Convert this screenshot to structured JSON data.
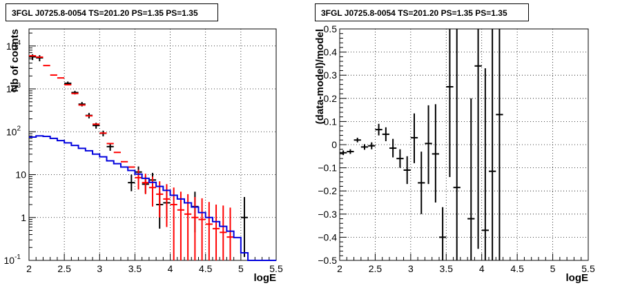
{
  "chart_data": [
    {
      "type": "scatter",
      "title": "3FGL J0725.8-0054 TS=201.20 PS=1.35 PS=1.35",
      "xlabel": "logE",
      "ylabel": "Nb of counts",
      "xlim": [
        2,
        5.5
      ],
      "ylim": [
        0.1,
        25000
      ],
      "yscale": "log",
      "grid": true,
      "xticks": [
        {
          "v": 2,
          "label": "2"
        },
        {
          "v": 2.5,
          "label": "2.5"
        },
        {
          "v": 3,
          "label": "3"
        },
        {
          "v": 3.5,
          "label": "3.5"
        },
        {
          "v": 4,
          "label": "4"
        },
        {
          "v": 4.5,
          "label": "4.5"
        },
        {
          "v": 5,
          "label": "5"
        },
        {
          "v": 5.5,
          "label": "5.5"
        }
      ],
      "yticks": [
        {
          "v": 0.1,
          "label": "10",
          "sup": "-1"
        },
        {
          "v": 1,
          "label": "1",
          "sup": ""
        },
        {
          "v": 10,
          "label": "10",
          "sup": ""
        },
        {
          "v": 100,
          "label": "10",
          "sup": "2"
        },
        {
          "v": 1000,
          "label": "10",
          "sup": "3"
        },
        {
          "v": 10000,
          "label": "10",
          "sup": "4"
        }
      ],
      "series": [
        {
          "color": "#000000",
          "points": [
            [
              2.05,
              5600,
              4700,
              6400
            ],
            [
              2.15,
              5300,
              4400,
              6100
            ],
            [
              2.55,
              1350,
              1220,
              1480
            ],
            [
              2.65,
              820,
              740,
              900
            ],
            [
              2.75,
              440,
              390,
              495
            ],
            [
              2.85,
              240,
              205,
              275
            ],
            [
              2.95,
              140,
              118,
              162
            ],
            [
              3.05,
              92,
              78,
              106
            ],
            [
              3.15,
              45,
              36,
              54
            ],
            [
              3.55,
              11.5,
              7.8,
              15.5
            ],
            [
              3.45,
              6.5,
              4.1,
              10
            ],
            [
              3.65,
              6.0,
              3.7,
              9
            ],
            [
              3.75,
              7.5,
              4.6,
              11
            ],
            [
              3.85,
              2.0,
              0.55,
              4
            ],
            [
              3.95,
              2.2,
              1.0,
              4.5
            ],
            [
              4.35,
              1.8,
              0.45,
              4
            ],
            [
              5.05,
              1.0,
              0.12,
              3
            ]
          ]
        },
        {
          "color": "#ff0000",
          "points": [
            [
              2.05,
              5900,
              5900,
              5900
            ],
            [
              2.15,
              5500,
              5500,
              5500
            ],
            [
              2.25,
              3500,
              3500,
              3500
            ],
            [
              2.35,
              2100,
              2100,
              2100
            ],
            [
              2.45,
              1800,
              1800,
              1800
            ],
            [
              2.55,
              1250,
              1250,
              1250
            ],
            [
              2.65,
              780,
              780,
              780
            ],
            [
              2.75,
              420,
              420,
              420
            ],
            [
              2.85,
              235,
              235,
              235
            ],
            [
              2.95,
              150,
              150,
              150
            ],
            [
              3.05,
              93,
              93,
              93
            ],
            [
              3.15,
              53,
              53,
              53
            ],
            [
              3.25,
              33,
              33,
              33
            ],
            [
              3.35,
              20,
              20,
              20
            ],
            [
              3.45,
              15,
              15,
              15
            ],
            [
              3.55,
              8.5,
              4.5,
              13
            ],
            [
              3.65,
              6.5,
              3.5,
              10.5
            ],
            [
              3.75,
              5.0,
              1.8,
              9
            ],
            [
              3.85,
              3.5,
              1.0,
              7
            ],
            [
              3.95,
              2.7,
              0.6,
              6
            ],
            [
              4.05,
              2.0,
              0.1,
              5
            ],
            [
              4.15,
              1.5,
              0.1,
              4
            ],
            [
              4.25,
              1.2,
              0.1,
              3.5
            ],
            [
              4.35,
              1.0,
              0.1,
              3
            ],
            [
              4.45,
              0.9,
              0.1,
              2.8
            ],
            [
              4.55,
              0.7,
              0.1,
              2.3
            ],
            [
              4.65,
              0.55,
              0.1,
              2.0
            ],
            [
              4.75,
              0.45,
              0.1,
              1.9
            ],
            [
              4.85,
              0.35,
              0.1,
              1.7
            ]
          ]
        },
        {
          "color": "#0000dd",
          "step": [
            [
              2.0,
              75
            ],
            [
              2.1,
              80
            ],
            [
              2.2,
              78
            ],
            [
              2.3,
              70
            ],
            [
              2.4,
              62
            ],
            [
              2.5,
              55
            ],
            [
              2.6,
              48
            ],
            [
              2.7,
              41
            ],
            [
              2.8,
              36
            ],
            [
              2.9,
              30
            ],
            [
              3.0,
              26
            ],
            [
              3.1,
              21
            ],
            [
              3.2,
              18
            ],
            [
              3.3,
              15
            ],
            [
              3.4,
              12.5
            ],
            [
              3.5,
              10.3
            ],
            [
              3.6,
              8.2
            ],
            [
              3.7,
              6.6
            ],
            [
              3.8,
              5.3
            ],
            [
              3.9,
              4.3
            ],
            [
              4.0,
              3.3
            ],
            [
              4.1,
              2.7
            ],
            [
              4.2,
              2.2
            ],
            [
              4.3,
              1.75
            ],
            [
              4.4,
              1.3
            ],
            [
              4.5,
              1.0
            ],
            [
              4.6,
              0.8
            ],
            [
              4.7,
              0.62
            ],
            [
              4.8,
              0.48
            ],
            [
              4.9,
              0.34
            ],
            [
              5.0,
              0.15
            ],
            [
              5.1,
              0.1
            ],
            [
              5.5,
              0.1
            ]
          ]
        }
      ]
    },
    {
      "type": "scatter",
      "title": "3FGL J0725.8-0054 TS=201.20 PS=1.35 PS=1.35",
      "xlabel": "logE",
      "ylabel": "(data-model)/model",
      "xlim": [
        2,
        5.5
      ],
      "ylim": [
        -0.5,
        0.5
      ],
      "yscale": "linear",
      "grid": true,
      "xticks": [
        {
          "v": 2,
          "label": "2"
        },
        {
          "v": 2.5,
          "label": "2.5"
        },
        {
          "v": 3,
          "label": "3"
        },
        {
          "v": 3.5,
          "label": "3.5"
        },
        {
          "v": 4,
          "label": "4"
        },
        {
          "v": 4.5,
          "label": "4.5"
        },
        {
          "v": 5,
          "label": "5"
        },
        {
          "v": 5.5,
          "label": "5.5"
        }
      ],
      "yticks": [
        {
          "v": -0.5,
          "label": "−0.5"
        },
        {
          "v": -0.4,
          "label": "−0.4"
        },
        {
          "v": -0.3,
          "label": "−0.3"
        },
        {
          "v": -0.2,
          "label": "−0.2"
        },
        {
          "v": -0.1,
          "label": "−0.1"
        },
        {
          "v": 0,
          "label": "0"
        },
        {
          "v": 0.1,
          "label": "0.1"
        },
        {
          "v": 0.2,
          "label": "0.2"
        },
        {
          "v": 0.3,
          "label": "0.3"
        },
        {
          "v": 0.4,
          "label": "0.4"
        },
        {
          "v": 0.5,
          "label": "0.5"
        }
      ],
      "series": [
        {
          "color": "#000000",
          "points": [
            [
              2.05,
              -0.035,
              -0.045,
              -0.025
            ],
            [
              2.15,
              -0.03,
              -0.04,
              -0.02
            ],
            [
              2.25,
              0.02,
              0.01,
              0.03
            ],
            [
              2.35,
              -0.01,
              -0.022,
              0.002
            ],
            [
              2.45,
              -0.005,
              -0.02,
              0.01
            ],
            [
              2.55,
              0.065,
              0.04,
              0.09
            ],
            [
              2.65,
              0.045,
              0.015,
              0.075
            ],
            [
              2.75,
              -0.015,
              -0.055,
              0.025
            ],
            [
              2.85,
              -0.06,
              -0.1,
              -0.02
            ],
            [
              2.95,
              -0.11,
              -0.17,
              -0.05
            ],
            [
              3.05,
              0.03,
              -0.08,
              0.135
            ],
            [
              3.15,
              -0.165,
              -0.3,
              -0.03
            ],
            [
              3.25,
              0.005,
              -0.17,
              0.17
            ],
            [
              3.35,
              -0.04,
              -0.25,
              0.175
            ],
            [
              3.45,
              -0.4,
              -0.5,
              -0.27
            ],
            [
              3.55,
              0.25,
              -0.14,
              0.5
            ],
            [
              3.65,
              -0.185,
              -0.5,
              0.5
            ],
            [
              3.85,
              -0.32,
              -0.5,
              0.2
            ],
            [
              3.95,
              0.34,
              -0.45,
              0.5
            ],
            [
              4.05,
              -0.37,
              -0.5,
              0.33
            ],
            [
              4.15,
              -0.115,
              -0.5,
              0.5
            ],
            [
              4.25,
              0.13,
              -0.5,
              0.5
            ]
          ]
        }
      ]
    }
  ]
}
